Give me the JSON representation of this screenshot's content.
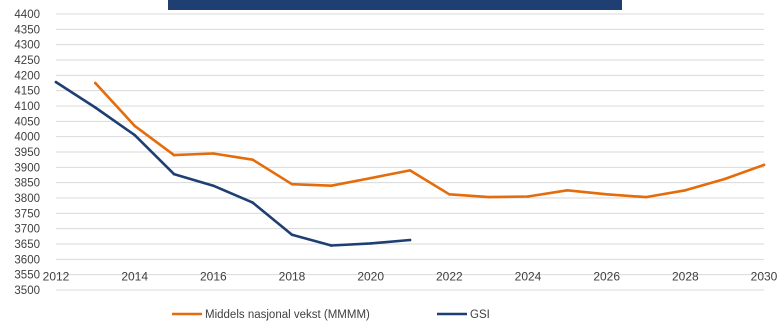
{
  "chart_data": {
    "type": "line",
    "title": "",
    "xlabel": "",
    "ylabel": "",
    "xlim": [
      2012,
      2030
    ],
    "ylim": [
      3500,
      4400
    ],
    "y_ticks": [
      3500,
      3550,
      3600,
      3650,
      3700,
      3750,
      3800,
      3850,
      3900,
      3950,
      4000,
      4050,
      4100,
      4150,
      4200,
      4250,
      4300,
      4350,
      4400
    ],
    "x_ticks": [
      2012,
      2014,
      2016,
      2018,
      2020,
      2022,
      2024,
      2026,
      2028,
      2030
    ],
    "grid": true,
    "legend_position": "bottom",
    "series": [
      {
        "name": "Middels nasjonal vekst (MMMM)",
        "color": "#e46c0a",
        "x": [
          2013,
          2014,
          2015,
          2016,
          2017,
          2018,
          2019,
          2020,
          2021,
          2022,
          2023,
          2024,
          2025,
          2026,
          2027,
          2028,
          2029,
          2030
        ],
        "y": [
          4175,
          4035,
          3940,
          3945,
          3925,
          3845,
          3840,
          3865,
          3890,
          3812,
          3803,
          3805,
          3825,
          3812,
          3803,
          3825,
          3862,
          3908
        ]
      },
      {
        "name": "GSI",
        "color": "#1f3f73",
        "x": [
          2012,
          2013,
          2014,
          2015,
          2016,
          2017,
          2018,
          2019,
          2020,
          2021
        ],
        "y": [
          4178,
          4095,
          4005,
          3878,
          3840,
          3785,
          3680,
          3645,
          3652,
          3663
        ]
      }
    ]
  },
  "banner_color": "#1f3f73"
}
